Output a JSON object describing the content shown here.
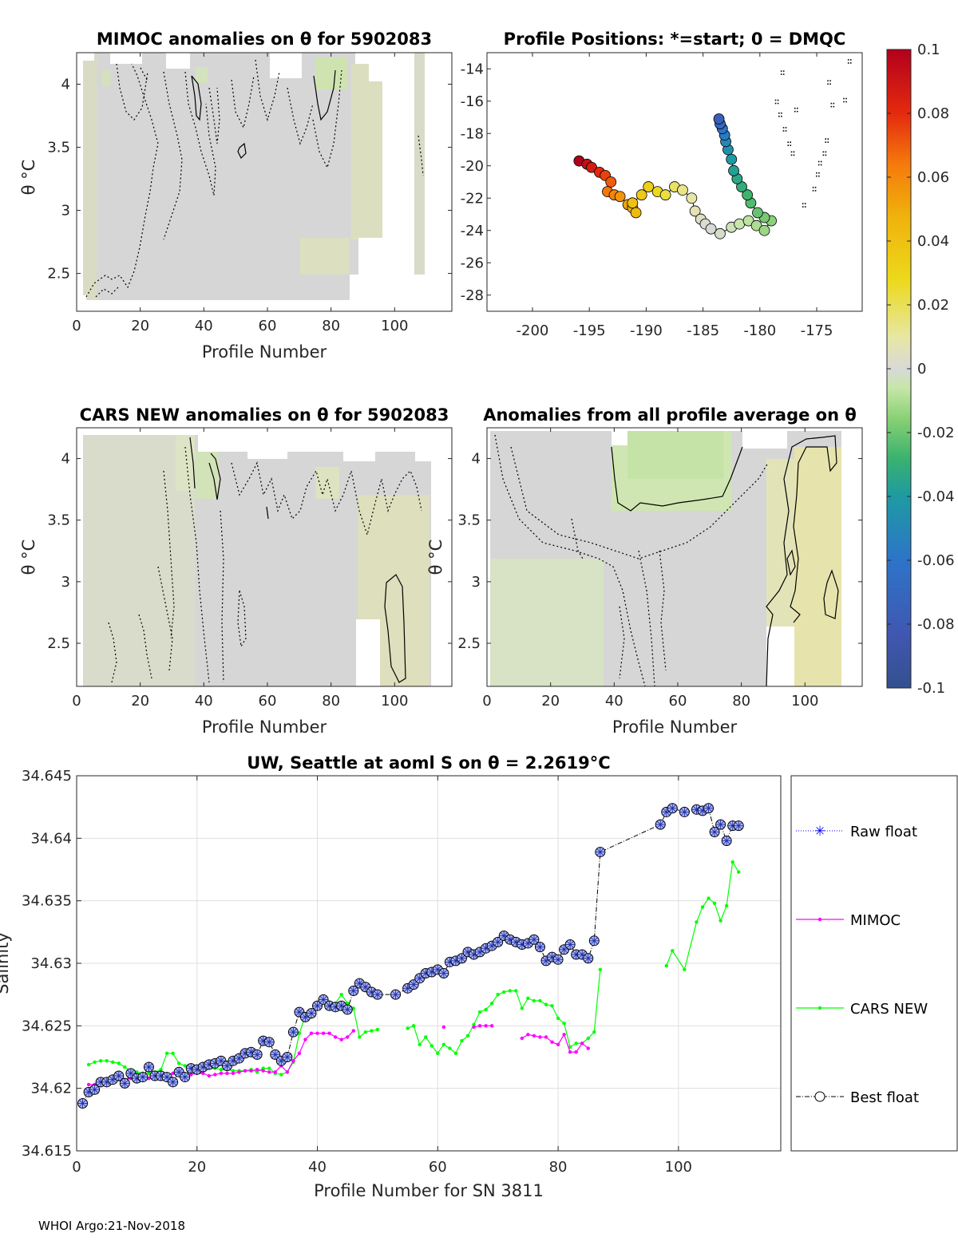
{
  "footer": "WHOI Argo:21-Nov-2018",
  "colorbar": {
    "ticks": [
      "0.1",
      "0.08",
      "0.06",
      "0.04",
      "0.02",
      "0",
      "-0.02",
      "-0.04",
      "-0.06",
      "-0.08",
      "-0.1"
    ],
    "colors": [
      "#b2001b",
      "#e42a0e",
      "#f57a0d",
      "#f0b10c",
      "#ecd91a",
      "#e7e7a3",
      "#d9d9d9",
      "#c6e6a8",
      "#86d073",
      "#3bb26e",
      "#1e9aa2",
      "#2d74c9",
      "#4056b0",
      "#34508f"
    ]
  },
  "chart_data": [
    {
      "id": "mimoc",
      "type": "heatmap",
      "title": "MIMOC anomalies on θ  for 5902083",
      "xlabel": "Profile Number",
      "ylabel": "θ °C",
      "xlim": [
        0,
        118
      ],
      "ylim": [
        2.2,
        4.25
      ],
      "xticks": [
        "0",
        "20",
        "40",
        "60",
        "80",
        "100"
      ],
      "yticks": [
        "2.5",
        "3",
        "3.5",
        "4"
      ],
      "missing_columns": [
        [
          96,
          105
        ]
      ],
      "zero_contours": true
    },
    {
      "id": "positions",
      "type": "scatter",
      "title": "Profile Positions: *=start; 0 = DMQC",
      "xlim": [
        -204,
        -171
      ],
      "ylim": [
        -29,
        -13
      ],
      "xticks": [
        "-200",
        "-195",
        "-190",
        "-185",
        "-180",
        "-175"
      ],
      "yticks": [
        "-14",
        "-16",
        "-18",
        "-20",
        "-22",
        "-24",
        "-26",
        "-28"
      ],
      "track": [
        [
          -195.9,
          -19.7
        ],
        [
          -195.2,
          -19.9
        ],
        [
          -194.8,
          -20.1
        ],
        [
          -194.1,
          -20.4
        ],
        [
          -193.6,
          -20.6
        ],
        [
          -193.1,
          -21.0
        ],
        [
          -193.4,
          -21.6
        ],
        [
          -192.8,
          -21.8
        ],
        [
          -192.3,
          -21.9
        ],
        [
          -191.6,
          -22.4
        ],
        [
          -191.2,
          -22.6
        ],
        [
          -190.9,
          -22.9
        ],
        [
          -191.2,
          -22.3
        ],
        [
          -190.4,
          -21.8
        ],
        [
          -189.8,
          -21.3
        ],
        [
          -189.0,
          -21.6
        ],
        [
          -188.3,
          -21.8
        ],
        [
          -187.5,
          -21.3
        ],
        [
          -186.8,
          -21.5
        ],
        [
          -186.0,
          -22.0
        ],
        [
          -185.7,
          -22.8
        ],
        [
          -185.2,
          -23.3
        ],
        [
          -184.8,
          -23.6
        ],
        [
          -184.3,
          -23.9
        ],
        [
          -183.5,
          -24.2
        ],
        [
          -182.5,
          -23.8
        ],
        [
          -181.8,
          -23.6
        ],
        [
          -181.0,
          -23.4
        ],
        [
          -180.3,
          -23.7
        ],
        [
          -179.6,
          -24.0
        ],
        [
          -179.0,
          -23.4
        ],
        [
          -179.6,
          -23.2
        ],
        [
          -180.2,
          -22.9
        ],
        [
          -180.8,
          -22.3
        ],
        [
          -181.1,
          -21.8
        ],
        [
          -181.6,
          -21.3
        ],
        [
          -182.0,
          -20.8
        ],
        [
          -182.3,
          -20.3
        ],
        [
          -182.5,
          -19.6
        ],
        [
          -182.8,
          -19.0
        ],
        [
          -183.0,
          -18.5
        ],
        [
          -183.1,
          -18.1
        ],
        [
          -183.3,
          -17.7
        ],
        [
          -183.5,
          -17.4
        ],
        [
          -183.6,
          -17.1
        ]
      ],
      "colorvar": [
        0.1,
        0.095,
        0.09,
        0.085,
        0.08,
        0.075,
        0.07,
        0.066,
        0.062,
        0.058,
        0.054,
        0.05,
        0.048,
        0.045,
        0.042,
        0.038,
        0.034,
        0.03,
        0.026,
        0.022,
        0.018,
        0.014,
        0.01,
        0.006,
        0.002,
        -0.002,
        -0.006,
        -0.01,
        -0.014,
        -0.018,
        -0.022,
        -0.026,
        -0.03,
        -0.034,
        -0.038,
        -0.042,
        -0.046,
        -0.05,
        -0.054,
        -0.058,
        -0.062,
        -0.066,
        -0.07,
        -0.075,
        -0.08
      ],
      "bathy_dots": [
        [
          -178.6,
          -16.0
        ],
        [
          -178.3,
          -16.8
        ],
        [
          -177.9,
          -17.7
        ],
        [
          -177.5,
          -18.6
        ],
        [
          -177.2,
          -19.2
        ],
        [
          -176.9,
          -16.5
        ],
        [
          -175.0,
          -20.5
        ],
        [
          -174.8,
          -19.8
        ],
        [
          -174.4,
          -19.2
        ],
        [
          -174.2,
          -18.4
        ],
        [
          -175.3,
          -21.4
        ],
        [
          -173.7,
          -16.2
        ],
        [
          -172.6,
          -15.9
        ],
        [
          -174.0,
          -14.8
        ],
        [
          -172.2,
          -13.5
        ],
        [
          -176.2,
          -22.4
        ],
        [
          -178.1,
          -14.2
        ]
      ]
    },
    {
      "id": "cars",
      "type": "heatmap",
      "title": "CARS NEW anomalies on θ for 5902083",
      "xlabel": "Profile Number",
      "ylabel": "θ °C",
      "xlim": [
        0,
        118
      ],
      "ylim": [
        2.15,
        4.25
      ],
      "xticks": [
        "0",
        "20",
        "40",
        "60",
        "80",
        "100"
      ],
      "yticks": [
        "2.5",
        "3",
        "3.5",
        "4"
      ],
      "zero_contours": true
    },
    {
      "id": "allprof",
      "type": "heatmap",
      "title": "Anomalies from all profile average on θ",
      "xlabel": "Profile Number",
      "ylabel": "θ °C",
      "xlim": [
        0,
        118
      ],
      "ylim": [
        2.15,
        4.25
      ],
      "xticks": [
        "0",
        "20",
        "40",
        "60",
        "80",
        "100"
      ],
      "yticks": [
        "2.5",
        "3",
        "3.5",
        "4"
      ],
      "zero_contours": true
    },
    {
      "id": "salinity",
      "type": "line",
      "title": "UW, Seattle at aoml S on θ = 2.2619°C",
      "xlabel": "Profile Number for SN 3811",
      "ylabel": "Salinity",
      "xlim": [
        0,
        117
      ],
      "ylim": [
        34.615,
        34.645
      ],
      "xticks": [
        "0",
        "20",
        "40",
        "60",
        "80",
        "100"
      ],
      "yticks": [
        "34.645",
        "34.64",
        "34.635",
        "34.63",
        "34.625",
        "34.62",
        "34.615"
      ],
      "legend": [
        "Raw float",
        "MIMOC",
        "CARS NEW",
        "Best float"
      ],
      "series": [
        {
          "name": "Best float",
          "x": [
            1,
            2,
            3,
            4,
            5,
            6,
            7,
            8,
            9,
            10,
            11,
            12,
            13,
            14,
            15,
            16,
            17,
            18,
            19,
            20,
            21,
            22,
            23,
            24,
            25,
            26,
            27,
            28,
            29,
            30,
            31,
            32,
            33,
            34,
            35,
            36,
            37,
            38,
            39,
            40,
            41,
            42,
            43,
            44,
            45,
            46,
            47,
            48,
            49,
            50,
            53,
            55,
            56,
            57,
            58,
            59,
            60,
            61,
            62,
            63,
            64,
            65,
            66,
            67,
            68,
            69,
            70,
            71,
            72,
            73,
            74,
            75,
            76,
            77,
            78,
            79,
            80,
            81,
            82,
            83,
            84,
            85,
            86,
            87,
            97,
            98,
            99,
            101,
            103,
            104,
            105,
            106,
            107,
            108,
            109,
            110
          ],
          "values": [
            34.6188,
            34.6197,
            34.6199,
            34.6205,
            34.6205,
            34.6207,
            34.621,
            34.6204,
            34.6212,
            34.6208,
            34.6209,
            34.6217,
            34.621,
            34.621,
            34.6209,
            34.6205,
            34.6213,
            34.6209,
            34.6216,
            34.6215,
            34.6217,
            34.6219,
            34.622,
            34.6222,
            34.6218,
            34.6222,
            34.6224,
            34.6228,
            34.6229,
            34.6227,
            34.6238,
            34.6237,
            34.6227,
            34.6222,
            34.6225,
            34.6245,
            34.6261,
            34.6257,
            34.626,
            34.6266,
            34.6271,
            34.6266,
            34.6265,
            34.6266,
            34.6263,
            34.6278,
            34.6284,
            34.6281,
            34.6277,
            34.6275,
            34.6275,
            34.628,
            34.6283,
            34.6288,
            34.6292,
            34.6293,
            34.6295,
            34.6292,
            34.6301,
            34.6302,
            34.6304,
            34.6309,
            34.6307,
            34.6309,
            34.6312,
            34.6314,
            34.6317,
            34.6322,
            34.6319,
            34.6317,
            34.6315,
            34.6316,
            34.6319,
            34.6313,
            34.6302,
            34.6305,
            34.6303,
            34.6311,
            34.6315,
            34.6307,
            34.6307,
            34.6304,
            34.6318,
            34.6389,
            34.6411,
            34.6421,
            34.6424,
            34.6421,
            34.6423,
            34.6422,
            34.6424,
            34.6405,
            34.6411,
            34.6398,
            34.641,
            34.641
          ]
        },
        {
          "name": "MIMOC",
          "x": [
            2,
            3,
            4,
            5,
            6,
            7,
            8,
            9,
            10,
            11,
            12,
            13,
            14,
            15,
            16,
            17,
            18,
            19,
            20,
            21,
            22,
            23,
            24,
            25,
            26,
            27,
            28,
            29,
            30,
            31,
            32,
            33,
            34,
            35,
            36,
            37,
            38,
            39,
            40,
            41,
            42,
            43,
            44,
            45,
            46,
            61,
            66,
            67,
            68,
            69,
            74,
            75,
            76,
            77,
            78,
            79,
            80,
            81,
            82,
            83,
            84,
            85
          ],
          "values": [
            34.6203,
            34.6203,
            34.6203,
            34.6206,
            34.6205,
            34.6207,
            34.6207,
            34.6208,
            34.6208,
            34.6208,
            34.6208,
            34.621,
            34.621,
            34.6211,
            34.6212,
            34.6212,
            34.6211,
            34.6211,
            34.6212,
            34.6212,
            34.621,
            34.6211,
            34.6212,
            34.6212,
            34.6212,
            34.6213,
            34.6214,
            34.6214,
            34.6215,
            34.6214,
            34.6213,
            34.6213,
            34.6218,
            34.6213,
            34.6222,
            34.6228,
            34.6239,
            34.6244,
            34.6244,
            34.6244,
            34.6244,
            34.6241,
            34.6239,
            34.6241,
            34.6246,
            34.6249,
            34.6249,
            34.625,
            34.625,
            34.625,
            34.624,
            34.6243,
            34.6242,
            34.6241,
            34.6241,
            34.6237,
            34.6235,
            34.6243,
            34.6229,
            34.6229,
            34.6236,
            34.6232
          ],
          "color": "#ff00ff"
        },
        {
          "name": "CARS NEW",
          "segments": [
            {
              "x": [
                2,
                3,
                4,
                5,
                6,
                7,
                8,
                9,
                10,
                11,
                12,
                13,
                14,
                15,
                16,
                17,
                18,
                19,
                20,
                21,
                22,
                23,
                24,
                25,
                26,
                27,
                28,
                29,
                30,
                31,
                32,
                33,
                34,
                35,
                36,
                37,
                38,
                39,
                40,
                41,
                42,
                43,
                44,
                45,
                46,
                47,
                48,
                49,
                50
              ],
              "values": [
                34.6219,
                34.6221,
                34.6222,
                34.6222,
                34.6221,
                34.622,
                34.6217,
                34.6214,
                34.6213,
                34.6212,
                34.6212,
                34.6213,
                34.6215,
                34.6228,
                34.6228,
                34.622,
                34.6218,
                34.6218,
                34.6217,
                34.6217,
                34.6216,
                34.6216,
                34.6215,
                34.6215,
                34.6214,
                34.6214,
                34.6214,
                34.6215,
                34.6213,
                34.6216,
                34.6216,
                34.6212,
                34.6211,
                34.6213,
                34.6221,
                34.6244,
                34.6258,
                34.6257,
                34.6265,
                34.6269,
                34.6269,
                34.6268,
                34.6275,
                34.6268,
                34.6264,
                34.6241,
                34.6245,
                34.6246,
                34.6247
              ]
            },
            {
              "x": [
                55,
                56,
                57,
                58,
                59,
                60,
                61,
                62,
                63,
                64,
                65,
                66,
                67,
                68,
                69,
                70,
                71,
                72,
                73,
                74,
                75,
                76,
                77,
                78,
                79,
                80,
                81,
                82,
                83,
                84,
                85,
                86,
                87
              ],
              "values": [
                34.6248,
                34.625,
                34.6235,
                34.6241,
                34.6234,
                34.6228,
                34.6235,
                34.6232,
                34.6228,
                34.6238,
                34.6242,
                34.6251,
                34.6261,
                34.6263,
                34.6268,
                34.6275,
                34.6277,
                34.6278,
                34.6278,
                34.6264,
                34.6272,
                34.627,
                34.627,
                34.6267,
                34.6266,
                34.6256,
                34.6252,
                34.6233,
                34.6236,
                34.6236,
                34.624,
                34.6245,
                34.6295
              ]
            },
            {
              "x": [
                98,
                99,
                101,
                103,
                104,
                105,
                106,
                107,
                108,
                109,
                110
              ],
              "values": [
                34.6298,
                34.631,
                34.6295,
                34.6333,
                34.6345,
                34.6352,
                34.6348,
                34.6334,
                34.6346,
                34.6381,
                34.6373
              ]
            }
          ],
          "color": "#00ff00"
        }
      ]
    }
  ]
}
